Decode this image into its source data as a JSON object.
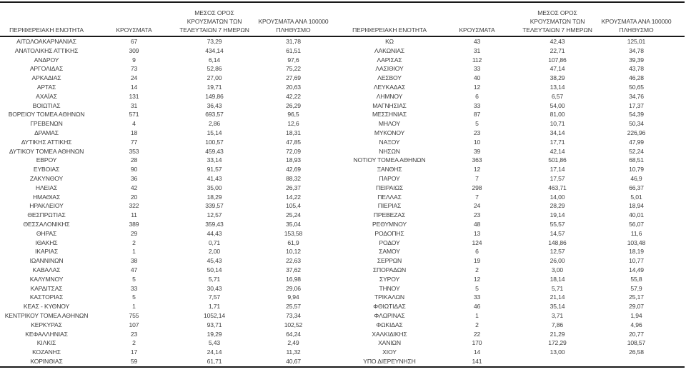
{
  "columns": {
    "region": "ΠΕΡΙΦΕΡΕΙΑΚΗ ΕΝΟΤΗΤΑ",
    "cases": "ΚΡΟΥΣΜΑΤΑ",
    "avg7_line1": "ΜΕΣΟΣ ΟΡΟΣ",
    "avg7_line2": "ΚΡΟΥΣΜΑΤΩΝ ΤΩΝ",
    "avg7_line3": "ΤΕΛΕΥΤΑΙΩΝ 7 ΗΜΕΡΩΝ",
    "per100k_line1": "ΚΡΟΥΣΜΑΤΑ ΑΝΑ 100000",
    "per100k_line2": "ΠΛΗΘΥΣΜΟ"
  },
  "left_table": {
    "rows": [
      {
        "name": "ΑΙΤΩΛΟΑΚΑΡΝΑΝΙΑΣ",
        "cases": "67",
        "avg7": "73,29",
        "per100k": "31,78"
      },
      {
        "name": "ΑΝΑΤΟΛΙΚΗΣ ΑΤΤΙΚΗΣ",
        "cases": "309",
        "avg7": "434,14",
        "per100k": "61,51"
      },
      {
        "name": "ΑΝΔΡΟΥ",
        "cases": "9",
        "avg7": "6,14",
        "per100k": "97,6"
      },
      {
        "name": "ΑΡΓΟΛΙΔΑΣ",
        "cases": "73",
        "avg7": "52,86",
        "per100k": "75,22"
      },
      {
        "name": "ΑΡΚΑΔΙΑΣ",
        "cases": "24",
        "avg7": "27,00",
        "per100k": "27,69"
      },
      {
        "name": "ΑΡΤΑΣ",
        "cases": "14",
        "avg7": "19,71",
        "per100k": "20,63"
      },
      {
        "name": "ΑΧΑΪΑΣ",
        "cases": "131",
        "avg7": "149,86",
        "per100k": "42,22"
      },
      {
        "name": "ΒΟΙΩΤΙΑΣ",
        "cases": "31",
        "avg7": "36,43",
        "per100k": "26,29"
      },
      {
        "name": "ΒΟΡΕΙΟΥ ΤΟΜΕΑ ΑΘΗΝΩΝ",
        "cases": "571",
        "avg7": "693,57",
        "per100k": "96,5"
      },
      {
        "name": "ΓΡΕΒΕΝΩΝ",
        "cases": "4",
        "avg7": "2,86",
        "per100k": "12,6"
      },
      {
        "name": "ΔΡΑΜΑΣ",
        "cases": "18",
        "avg7": "15,14",
        "per100k": "18,31"
      },
      {
        "name": "ΔΥΤΙΚΗΣ ΑΤΤΙΚΗΣ",
        "cases": "77",
        "avg7": "100,57",
        "per100k": "47,85"
      },
      {
        "name": "ΔΥΤΙΚΟΥ ΤΟΜΕΑ ΑΘΗΝΩΝ",
        "cases": "353",
        "avg7": "459,43",
        "per100k": "72,09"
      },
      {
        "name": "ΕΒΡΟΥ",
        "cases": "28",
        "avg7": "33,14",
        "per100k": "18,93"
      },
      {
        "name": "ΕΥΒΟΙΑΣ",
        "cases": "90",
        "avg7": "91,57",
        "per100k": "42,69"
      },
      {
        "name": "ΖΑΚΥΝΘΟΥ",
        "cases": "36",
        "avg7": "41,43",
        "per100k": "88,32"
      },
      {
        "name": "ΗΛΕΙΑΣ",
        "cases": "42",
        "avg7": "35,00",
        "per100k": "26,37"
      },
      {
        "name": "ΗΜΑΘΙΑΣ",
        "cases": "20",
        "avg7": "18,29",
        "per100k": "14,22"
      },
      {
        "name": "ΗΡΑΚΛΕΙΟΥ",
        "cases": "322",
        "avg7": "339,57",
        "per100k": "105,4"
      },
      {
        "name": "ΘΕΣΠΡΩΤΙΑΣ",
        "cases": "11",
        "avg7": "12,57",
        "per100k": "25,24"
      },
      {
        "name": "ΘΕΣΣΑΛΟΝΙΚΗΣ",
        "cases": "389",
        "avg7": "359,43",
        "per100k": "35,04"
      },
      {
        "name": "ΘΗΡΑΣ",
        "cases": "29",
        "avg7": "44,43",
        "per100k": "153,58"
      },
      {
        "name": "ΙΘΑΚΗΣ",
        "cases": "2",
        "avg7": "0,71",
        "per100k": "61,9"
      },
      {
        "name": "ΙΚΑΡΙΑΣ",
        "cases": "1",
        "avg7": "2,00",
        "per100k": "10,12"
      },
      {
        "name": "ΙΩΑΝΝΙΝΩΝ",
        "cases": "38",
        "avg7": "45,43",
        "per100k": "22,63"
      },
      {
        "name": "ΚΑΒΑΛΑΣ",
        "cases": "47",
        "avg7": "50,14",
        "per100k": "37,62"
      },
      {
        "name": "ΚΑΛΥΜΝΟΥ",
        "cases": "5",
        "avg7": "5,71",
        "per100k": "16,98"
      },
      {
        "name": "ΚΑΡΔΙΤΣΑΣ",
        "cases": "33",
        "avg7": "30,43",
        "per100k": "29,06"
      },
      {
        "name": "ΚΑΣΤΟΡΙΑΣ",
        "cases": "5",
        "avg7": "7,57",
        "per100k": "9,94"
      },
      {
        "name": "ΚΕΑΣ - ΚΥΘΝΟΥ",
        "cases": "1",
        "avg7": "1,71",
        "per100k": "25,57"
      },
      {
        "name": "ΚΕΝΤΡΙΚΟΥ ΤΟΜΕΑ ΑΘΗΝΩΝ",
        "cases": "755",
        "avg7": "1052,14",
        "per100k": "73,34"
      },
      {
        "name": "ΚΕΡΚΥΡΑΣ",
        "cases": "107",
        "avg7": "93,71",
        "per100k": "102,52"
      },
      {
        "name": "ΚΕΦΑΛΛΗΝΙΑΣ",
        "cases": "23",
        "avg7": "19,29",
        "per100k": "64,24"
      },
      {
        "name": "ΚΙΛΚΙΣ",
        "cases": "2",
        "avg7": "5,43",
        "per100k": "2,49"
      },
      {
        "name": "ΚΟΖΑΝΗΣ",
        "cases": "17",
        "avg7": "24,14",
        "per100k": "11,32"
      },
      {
        "name": "ΚΟΡΙΝΘΙΑΣ",
        "cases": "59",
        "avg7": "61,71",
        "per100k": "40,67"
      }
    ]
  },
  "right_table": {
    "rows": [
      {
        "name": "ΚΩ",
        "cases": "43",
        "avg7": "42,43",
        "per100k": "125,01"
      },
      {
        "name": "ΛΑΚΩΝΙΑΣ",
        "cases": "31",
        "avg7": "22,71",
        "per100k": "34,78"
      },
      {
        "name": "ΛΑΡΙΣΑΣ",
        "cases": "112",
        "avg7": "107,86",
        "per100k": "39,39"
      },
      {
        "name": "ΛΑΣΙΘΙΟΥ",
        "cases": "33",
        "avg7": "47,14",
        "per100k": "43,78"
      },
      {
        "name": "ΛΕΣΒΟΥ",
        "cases": "40",
        "avg7": "38,29",
        "per100k": "46,28"
      },
      {
        "name": "ΛΕΥΚΑΔΑΣ",
        "cases": "12",
        "avg7": "13,14",
        "per100k": "50,65"
      },
      {
        "name": "ΛΗΜΝΟΥ",
        "cases": "6",
        "avg7": "6,57",
        "per100k": "34,76"
      },
      {
        "name": "ΜΑΓΝΗΣΙΑΣ",
        "cases": "33",
        "avg7": "54,00",
        "per100k": "17,37"
      },
      {
        "name": "ΜΕΣΣΗΝΙΑΣ",
        "cases": "87",
        "avg7": "81,00",
        "per100k": "54,39"
      },
      {
        "name": "ΜΗΛΟΥ",
        "cases": "5",
        "avg7": "10,71",
        "per100k": "50,34"
      },
      {
        "name": "ΜΥΚΟΝΟΥ",
        "cases": "23",
        "avg7": "34,14",
        "per100k": "226,96"
      },
      {
        "name": "ΝΑΞΟΥ",
        "cases": "10",
        "avg7": "17,71",
        "per100k": "47,99"
      },
      {
        "name": "ΝΗΣΩΝ",
        "cases": "39",
        "avg7": "42,14",
        "per100k": "52,24"
      },
      {
        "name": "ΝΟΤΙΟΥ ΤΟΜΕΑ ΑΘΗΝΩΝ",
        "cases": "363",
        "avg7": "501,86",
        "per100k": "68,51"
      },
      {
        "name": "ΞΑΝΘΗΣ",
        "cases": "12",
        "avg7": "17,14",
        "per100k": "10,79"
      },
      {
        "name": "ΠΑΡΟΥ",
        "cases": "7",
        "avg7": "17,57",
        "per100k": "46,9"
      },
      {
        "name": "ΠΕΙΡΑΙΩΣ",
        "cases": "298",
        "avg7": "463,71",
        "per100k": "66,37"
      },
      {
        "name": "ΠΕΛΛΑΣ",
        "cases": "7",
        "avg7": "14,00",
        "per100k": "5,01"
      },
      {
        "name": "ΠΙΕΡΙΑΣ",
        "cases": "24",
        "avg7": "28,29",
        "per100k": "18,94"
      },
      {
        "name": "ΠΡΕΒΕΖΑΣ",
        "cases": "23",
        "avg7": "19,14",
        "per100k": "40,01"
      },
      {
        "name": "ΡΕΘΥΜΝΟΥ",
        "cases": "48",
        "avg7": "55,57",
        "per100k": "56,07"
      },
      {
        "name": "ΡΟΔΟΠΗΣ",
        "cases": "13",
        "avg7": "14,57",
        "per100k": "11,6"
      },
      {
        "name": "ΡΟΔΟΥ",
        "cases": "124",
        "avg7": "148,86",
        "per100k": "103,48"
      },
      {
        "name": "ΣΑΜΟΥ",
        "cases": "6",
        "avg7": "12,57",
        "per100k": "18,19"
      },
      {
        "name": "ΣΕΡΡΩΝ",
        "cases": "19",
        "avg7": "26,00",
        "per100k": "10,77"
      },
      {
        "name": "ΣΠΟΡΑΔΩΝ",
        "cases": "2",
        "avg7": "3,00",
        "per100k": "14,49"
      },
      {
        "name": "ΣΥΡΟΥ",
        "cases": "12",
        "avg7": "18,14",
        "per100k": "55,8"
      },
      {
        "name": "ΤΗΝΟΥ",
        "cases": "5",
        "avg7": "5,71",
        "per100k": "57,9"
      },
      {
        "name": "ΤΡΙΚΑΛΩΝ",
        "cases": "33",
        "avg7": "21,14",
        "per100k": "25,17"
      },
      {
        "name": "ΦΘΙΩΤΙΔΑΣ",
        "cases": "46",
        "avg7": "35,14",
        "per100k": "29,07"
      },
      {
        "name": "ΦΛΩΡΙΝΑΣ",
        "cases": "1",
        "avg7": "3,71",
        "per100k": "1,94"
      },
      {
        "name": "ΦΩΚΙΔΑΣ",
        "cases": "2",
        "avg7": "7,86",
        "per100k": "4,96"
      },
      {
        "name": "ΧΑΛΚΙΔΙΚΗΣ",
        "cases": "22",
        "avg7": "21,29",
        "per100k": "20,77"
      },
      {
        "name": "ΧΑΝΙΩΝ",
        "cases": "170",
        "avg7": "172,29",
        "per100k": "108,57"
      },
      {
        "name": "ΧΙΟΥ",
        "cases": "14",
        "avg7": "13,00",
        "per100k": "26,58"
      },
      {
        "name": "ΥΠΟ ΔΙΕΡΕΥΝΗΣΗ",
        "cases": "141",
        "avg7": "",
        "per100k": ""
      }
    ]
  },
  "colors": {
    "text": "#3d3d3d",
    "rule": "#1a1a1a",
    "background": "#ffffff"
  }
}
